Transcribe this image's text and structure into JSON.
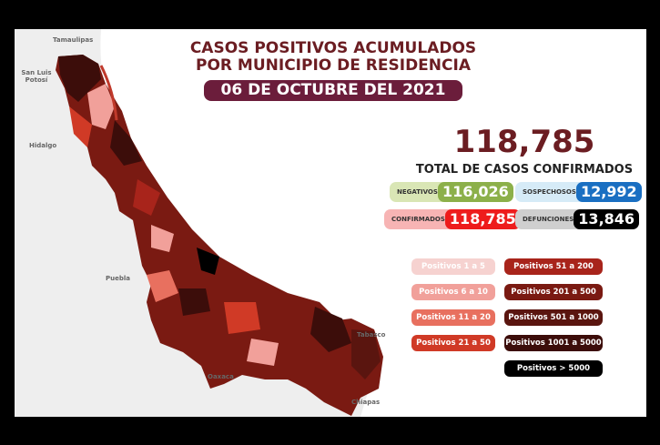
{
  "header": {
    "title_line1": "CASOS POSITIVOS ACUMULADOS",
    "title_line2": "POR MUNICIPIO DE RESIDENCIA",
    "date": "06 DE OCTUBRE DEL 2021"
  },
  "summary": {
    "total": "118,785",
    "total_label": "TOTAL DE CASOS CONFIRMADOS",
    "stats": [
      {
        "label": "NEGATIVOS",
        "value": "116,026",
        "color": "#8cb04a",
        "bg": "#d9e6b5"
      },
      {
        "label": "SOSPECHOSOS",
        "value": "12,992",
        "color": "#1a6fc2",
        "bg": "#d6ebf7"
      },
      {
        "label": "CONFIRMADOS",
        "value": "118,785",
        "color": "#ee1c1c",
        "bg": "#f7b4b4"
      },
      {
        "label": "DEFUNCIONES",
        "value": "13,846",
        "color": "#000000",
        "bg": "#cfcfcf"
      }
    ]
  },
  "legend": [
    {
      "label": "Positivos 1 a 5",
      "color": "#f6d2d0"
    },
    {
      "label": "Positivos 6 a 10",
      "color": "#f1a09a"
    },
    {
      "label": "Positivos 11 a 20",
      "color": "#e8705f"
    },
    {
      "label": "Positivos 21 a 50",
      "color": "#d03a26"
    },
    {
      "label": "Positivos 51 a 200",
      "color": "#a8241b"
    },
    {
      "label": "Positivos 201 a 500",
      "color": "#7a1a12"
    },
    {
      "label": "Positivos 501 a 1000",
      "color": "#5a150f"
    },
    {
      "label": "Positivos 1001 a 5000",
      "color": "#3c0d0a"
    },
    {
      "label": "Positivos > 5000",
      "color": "#000000"
    }
  ],
  "map": {
    "neighbors": [
      "Tamaulipas",
      "San Luis Potosí",
      "Hidalgo",
      "Puebla",
      "Oaxaca",
      "Tabasco",
      "Chiapas"
    ]
  }
}
